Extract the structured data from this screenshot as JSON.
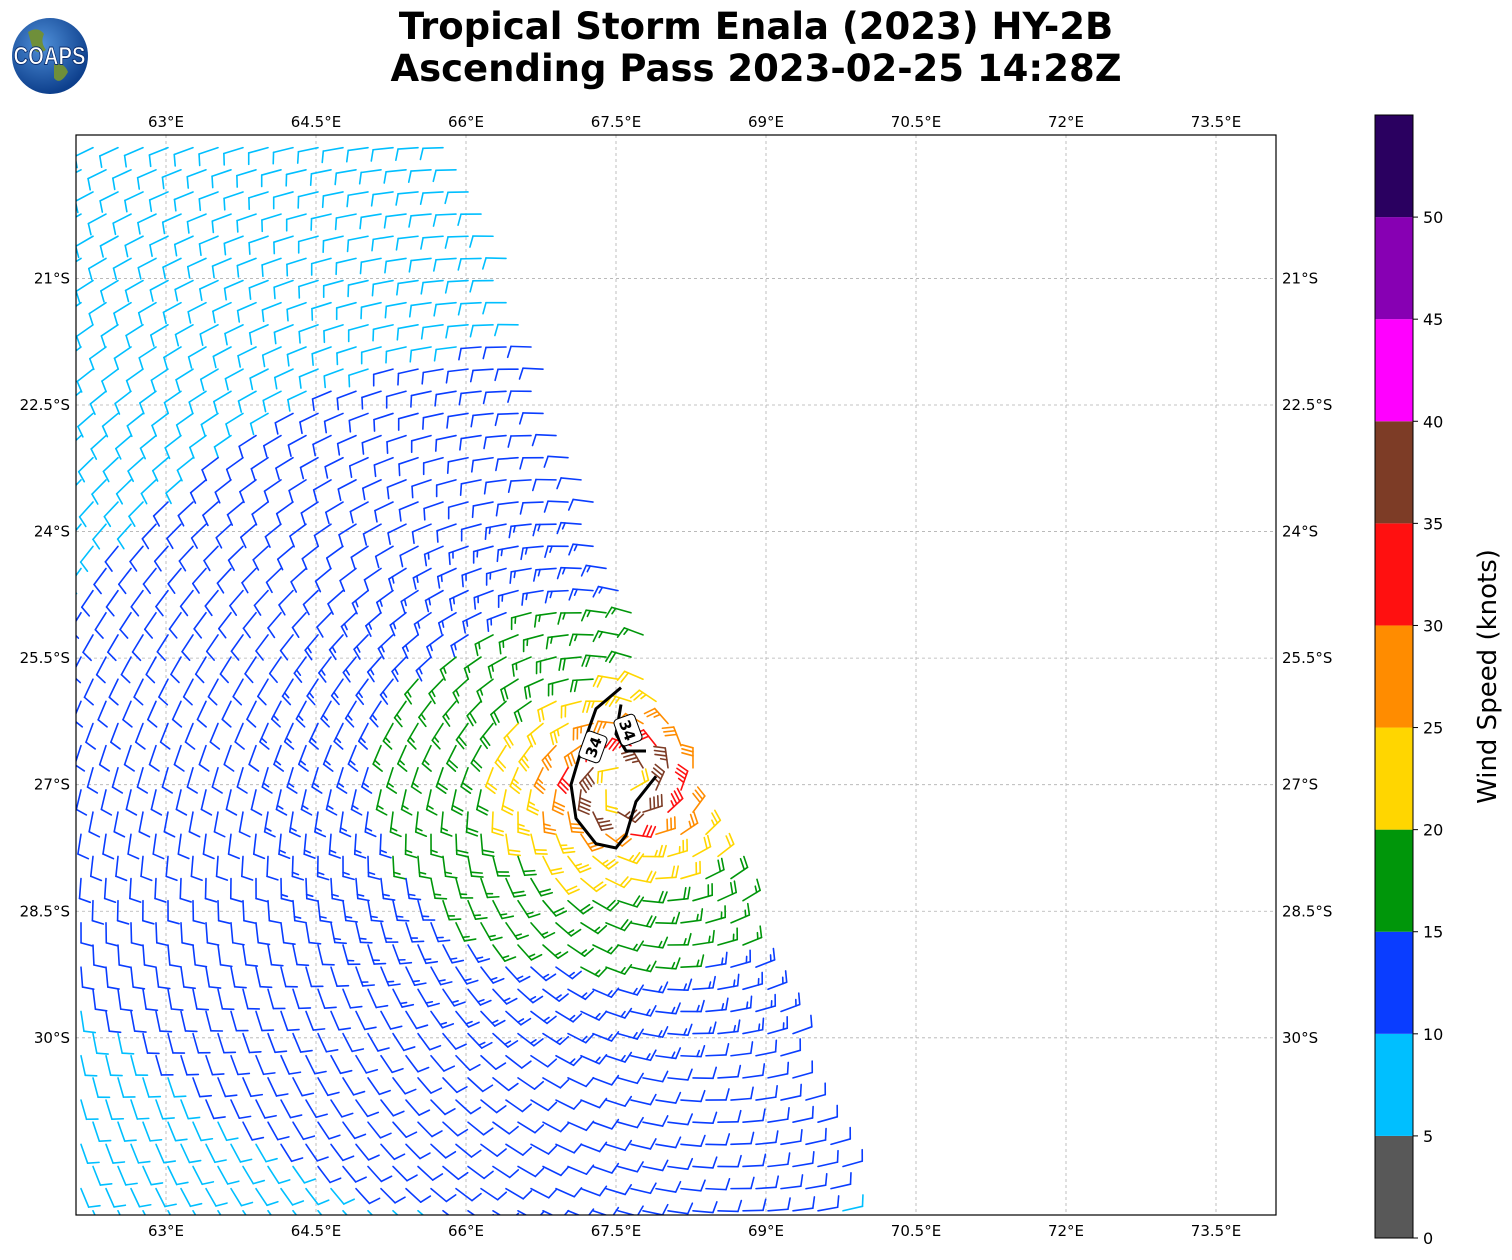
{
  "header": {
    "title_line1": "Tropical Storm Enala (2023) HY-2B",
    "title_line2": "Ascending Pass 2023-02-25 14:28Z",
    "logo_text": "COAPS"
  },
  "map": {
    "lon_range": [
      62.1,
      74.1
    ],
    "lat_range": [
      -32.1,
      -19.3
    ],
    "lon_ticks": [
      63,
      64.5,
      66,
      67.5,
      69,
      70.5,
      72,
      73.5
    ],
    "lon_tick_labels": [
      "63°E",
      "64.5°E",
      "66°E",
      "67.5°E",
      "69°E",
      "70.5°E",
      "72°E",
      "73.5°E"
    ],
    "lat_ticks": [
      -21,
      -22.5,
      -24,
      -25.5,
      -27,
      -28.5,
      -30
    ],
    "lat_tick_labels": [
      "21°S",
      "22.5°S",
      "24°S",
      "25.5°S",
      "27°S",
      "28.5°S",
      "30°S"
    ],
    "gridlines": true,
    "storm_center": [
      67.6,
      -27.0
    ],
    "swath_east_edge": [
      [
        66.0,
        -19.3
      ],
      [
        70.0,
        -32.1
      ]
    ],
    "contour_34kt": {
      "label": "34",
      "points": [
        [
          67.55,
          -25.85
        ],
        [
          67.3,
          -26.1
        ],
        [
          67.15,
          -26.6
        ],
        [
          67.05,
          -27.0
        ],
        [
          67.1,
          -27.4
        ],
        [
          67.3,
          -27.7
        ],
        [
          67.5,
          -27.75
        ],
        [
          67.6,
          -27.6
        ],
        [
          67.7,
          -27.2
        ],
        [
          67.9,
          -26.9
        ]
      ],
      "inner_points": [
        [
          67.55,
          -26.05
        ],
        [
          67.5,
          -26.4
        ],
        [
          67.6,
          -26.6
        ],
        [
          67.8,
          -26.6
        ]
      ]
    }
  },
  "colorbar": {
    "label": "Wind Speed (knots)",
    "ticks": [
      "0",
      "5",
      "10",
      "15",
      "20",
      "25",
      "30",
      "35",
      "40",
      "45",
      "50"
    ],
    "bins": [
      {
        "from": 0,
        "to": 5,
        "color": "#585858"
      },
      {
        "from": 5,
        "to": 10,
        "color": "#00bfff"
      },
      {
        "from": 10,
        "to": 15,
        "color": "#0a3dff"
      },
      {
        "from": 15,
        "to": 20,
        "color": "#00960a"
      },
      {
        "from": 20,
        "to": 25,
        "color": "#ffd600"
      },
      {
        "from": 25,
        "to": 30,
        "color": "#ff8c00"
      },
      {
        "from": 30,
        "to": 35,
        "color": "#ff1010"
      },
      {
        "from": 35,
        "to": 40,
        "color": "#7d3c26"
      },
      {
        "from": 40,
        "to": 45,
        "color": "#ff00ff"
      },
      {
        "from": 45,
        "to": 50,
        "color": "#8700b3"
      },
      {
        "from": 50,
        "to": 55,
        "color": "#2a0060"
      }
    ]
  }
}
